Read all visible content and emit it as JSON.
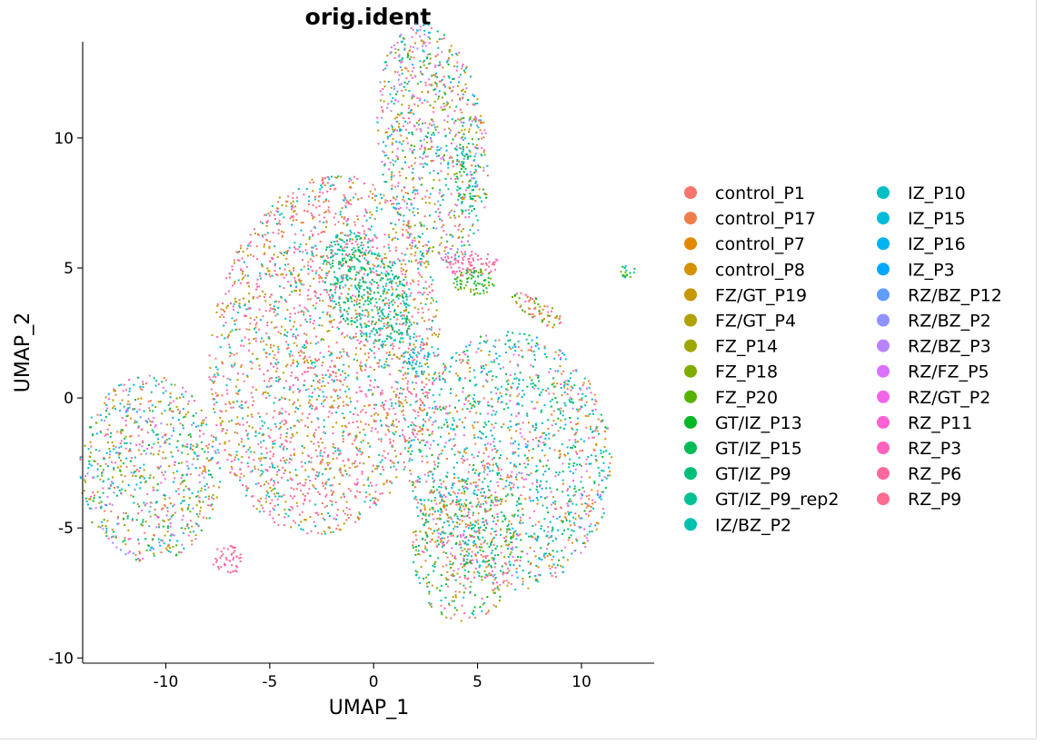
{
  "chart_data": {
    "type": "scatter",
    "title": "orig.ident",
    "xlabel": "UMAP_1",
    "ylabel": "UMAP_2",
    "xlim": [
      -14.0,
      13.5
    ],
    "ylim": [
      -10.2,
      13.7
    ],
    "xticks": [
      -10,
      -5,
      0,
      5,
      10
    ],
    "yticks": [
      -10,
      -5,
      0,
      5,
      10
    ],
    "xtick_labels": [
      "-10",
      "-5",
      "0",
      "5",
      "10"
    ],
    "ytick_labels": [
      "-10",
      "-5",
      "0",
      "5",
      "10"
    ],
    "grid": false,
    "legend_position": "right",
    "legend_columns": 2,
    "series": [
      {
        "name": "control_P1",
        "color": "#F8766D"
      },
      {
        "name": "control_P17",
        "color": "#EF7F49"
      },
      {
        "name": "control_P7",
        "color": "#E38900"
      },
      {
        "name": "control_P8",
        "color": "#D69100"
      },
      {
        "name": "FZ/GT_P19",
        "color": "#C59900"
      },
      {
        "name": "FZ/GT_P4",
        "color": "#B2A100"
      },
      {
        "name": "FZ_P14",
        "color": "#9DA700"
      },
      {
        "name": "FZ_P18",
        "color": "#7FAE00"
      },
      {
        "name": "FZ_P20",
        "color": "#55B300"
      },
      {
        "name": "GT/IZ_P13",
        "color": "#00B825"
      },
      {
        "name": "GT/IZ_P15",
        "color": "#00BC56"
      },
      {
        "name": "GT/IZ_P9",
        "color": "#00BE77"
      },
      {
        "name": "GT/IZ_P9_rep2",
        "color": "#00C095"
      },
      {
        "name": "IZ/BZ_P2",
        "color": "#00C0B0"
      },
      {
        "name": "IZ_P10",
        "color": "#00BFC4"
      },
      {
        "name": "IZ_P15",
        "color": "#00BBDA"
      },
      {
        "name": "IZ_P16",
        "color": "#00B4EF"
      },
      {
        "name": "IZ_P3",
        "color": "#00A9FF"
      },
      {
        "name": "RZ/BZ_P12",
        "color": "#619CFF"
      },
      {
        "name": "RZ/BZ_P2",
        "color": "#8F91FF"
      },
      {
        "name": "RZ/BZ_P3",
        "color": "#B983FF"
      },
      {
        "name": "RZ/FZ_P5",
        "color": "#DB72FB"
      },
      {
        "name": "RZ/GT_P2",
        "color": "#F066EA"
      },
      {
        "name": "RZ_P11",
        "color": "#FC61D5"
      },
      {
        "name": "RZ_P3",
        "color": "#FF62BC"
      },
      {
        "name": "RZ_P6",
        "color": "#FF689F"
      },
      {
        "name": "RZ_P9",
        "color": "#FF6C91"
      }
    ],
    "clusters": [
      {
        "cx": -2.4,
        "cy": 1.7,
        "rx": 5.5,
        "ry": 7.0,
        "rot": -12,
        "n": 2400,
        "mix": [
          1,
          0,
          0,
          0,
          1,
          1,
          0,
          0,
          0,
          0,
          0,
          0,
          0,
          1,
          1,
          0,
          0,
          0,
          0,
          0,
          0,
          0,
          0,
          0,
          1,
          1,
          1
        ]
      },
      {
        "cx": -0.4,
        "cy": 4.2,
        "rx": 2.6,
        "ry": 1.6,
        "rot": -45,
        "n": 380,
        "mix": [
          0,
          0,
          0,
          0,
          0,
          0,
          0,
          0,
          0,
          1,
          1,
          1,
          1,
          1,
          1,
          0,
          0,
          0,
          0,
          0,
          0,
          0,
          0,
          0,
          0,
          0,
          0
        ]
      },
      {
        "cx": 2.8,
        "cy": 9.8,
        "rx": 2.6,
        "ry": 4.7,
        "rot": 10,
        "n": 850,
        "mix": [
          1,
          1,
          1,
          1,
          1,
          1,
          1,
          1,
          1,
          1,
          1,
          1,
          1,
          1,
          1,
          1,
          1,
          1,
          1,
          1,
          1,
          1,
          1,
          1,
          1,
          1,
          1
        ]
      },
      {
        "cx": 6.5,
        "cy": -2.4,
        "rx": 4.9,
        "ry": 5.0,
        "rot": 30,
        "n": 1500,
        "mix": [
          1,
          1,
          1,
          1,
          0,
          0,
          0,
          0,
          0,
          1,
          1,
          1,
          1,
          1,
          1,
          1,
          1,
          1,
          0,
          0,
          0,
          1,
          1,
          1,
          0,
          0,
          0
        ]
      },
      {
        "cx": 4.3,
        "cy": -5.8,
        "rx": 2.5,
        "ry": 2.8,
        "rot": 0,
        "n": 420,
        "mix": [
          1,
          1,
          0,
          0,
          1,
          1,
          1,
          1,
          1,
          1,
          1,
          1,
          1,
          1,
          1,
          0,
          0,
          0,
          0,
          0,
          0,
          0,
          0,
          0,
          1,
          1,
          0
        ]
      },
      {
        "cx": -10.8,
        "cy": -2.7,
        "rx": 3.4,
        "ry": 3.6,
        "rot": 0,
        "n": 760,
        "mix": [
          1,
          1,
          1,
          1,
          1,
          1,
          1,
          1,
          1,
          1,
          1,
          1,
          1,
          1,
          1,
          1,
          1,
          1,
          1,
          1,
          1,
          1,
          1,
          1,
          1,
          1,
          1
        ]
      },
      {
        "cx": 4.6,
        "cy": 5.2,
        "rx": 1.4,
        "ry": 0.5,
        "rot": 0,
        "n": 90,
        "mix": [
          0,
          0,
          0,
          0,
          0,
          0,
          0,
          0,
          0,
          0,
          0,
          0,
          0,
          0,
          0,
          0,
          0,
          0,
          0,
          0,
          0,
          0,
          0,
          0,
          1,
          1,
          1
        ]
      },
      {
        "cx": 4.8,
        "cy": 4.5,
        "rx": 1.0,
        "ry": 0.5,
        "rot": 0,
        "n": 70,
        "mix": [
          0,
          0,
          0,
          0,
          0,
          0,
          0,
          1,
          1,
          1,
          1,
          0,
          0,
          0,
          0,
          0,
          0,
          0,
          0,
          0,
          0,
          0,
          0,
          0,
          0,
          0,
          0
        ]
      },
      {
        "cx": 7.9,
        "cy": 3.4,
        "rx": 1.4,
        "ry": 0.4,
        "rot": -25,
        "n": 70,
        "mix": [
          1,
          1,
          1,
          1,
          1,
          1,
          1,
          1,
          1,
          1,
          0,
          0,
          0,
          0,
          0,
          0,
          0,
          0,
          0,
          0,
          0,
          0,
          0,
          0,
          1,
          1,
          1
        ]
      },
      {
        "cx": -7.1,
        "cy": -6.2,
        "rx": 0.7,
        "ry": 0.6,
        "rot": 0,
        "n": 50,
        "mix": [
          0,
          0,
          0,
          0,
          0,
          0,
          0,
          0,
          0,
          0,
          0,
          0,
          0,
          0,
          0,
          0,
          0,
          0,
          0,
          0,
          0,
          0,
          0,
          0,
          1,
          1,
          1
        ]
      },
      {
        "cx": 12.2,
        "cy": 4.9,
        "rx": 0.35,
        "ry": 0.3,
        "rot": 0,
        "n": 18,
        "mix": [
          0,
          0,
          0,
          0,
          0,
          0,
          0,
          1,
          1,
          1,
          1,
          0,
          0,
          1,
          1,
          0,
          0,
          0,
          0,
          0,
          0,
          0,
          0,
          0,
          0,
          0,
          0
        ]
      },
      {
        "cx": 4.4,
        "cy": 8.5,
        "rx": 0.5,
        "ry": 1.6,
        "rot": 0,
        "n": 60,
        "mix": [
          0,
          0,
          0,
          0,
          0,
          0,
          0,
          0,
          0,
          1,
          1,
          1,
          1,
          1,
          1,
          0,
          0,
          0,
          0,
          0,
          0,
          0,
          0,
          0,
          0,
          0,
          0
        ]
      },
      {
        "cx": 2.0,
        "cy": 1.6,
        "rx": 0.7,
        "ry": 0.8,
        "rot": 0,
        "n": 50,
        "mix": [
          0,
          0,
          0,
          0,
          0,
          0,
          0,
          0,
          0,
          0,
          0,
          0,
          0,
          1,
          1,
          1,
          1,
          1,
          0,
          0,
          0,
          0,
          0,
          0,
          0,
          0,
          0
        ]
      }
    ]
  }
}
